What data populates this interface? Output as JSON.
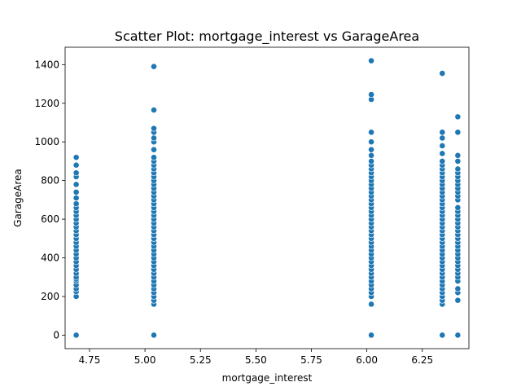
{
  "chart_data": {
    "type": "scatter",
    "title": "Scatter Plot: mortgage_interest vs GarageArea",
    "xlabel": "mortgage_interest",
    "ylabel": "GarageArea",
    "xlim": [
      4.64,
      6.46
    ],
    "ylim": [
      -70,
      1490
    ],
    "grid": false,
    "xticks": [
      4.75,
      5.0,
      5.25,
      5.5,
      5.75,
      6.0,
      6.25
    ],
    "xtick_labels": [
      "4.75",
      "5.00",
      "5.25",
      "5.50",
      "5.75",
      "6.00",
      "6.25"
    ],
    "yticks": [
      0,
      200,
      400,
      600,
      800,
      1000,
      1200,
      1400
    ],
    "ytick_labels": [
      "0",
      "200",
      "400",
      "600",
      "800",
      "1000",
      "1200",
      "1400"
    ],
    "marker_color": "#1f77b4",
    "series": [
      {
        "x": 4.69,
        "y": [
          0,
          200,
          225,
          240,
          260,
          280,
          290,
          300,
          320,
          340,
          360,
          380,
          400,
          420,
          440,
          460,
          480,
          500,
          520,
          540,
          560,
          580,
          600,
          620,
          640,
          660,
          680,
          710,
          740,
          780,
          820,
          840,
          880,
          920
        ]
      },
      {
        "x": 5.04,
        "y": [
          0,
          160,
          180,
          200,
          220,
          240,
          260,
          280,
          300,
          320,
          340,
          360,
          380,
          400,
          420,
          440,
          460,
          480,
          500,
          520,
          540,
          560,
          580,
          600,
          620,
          640,
          660,
          680,
          700,
          720,
          740,
          760,
          780,
          800,
          820,
          840,
          860,
          880,
          900,
          920,
          960,
          1000,
          1020,
          1050,
          1070,
          1165,
          1390
        ]
      },
      {
        "x": 6.02,
        "y": [
          0,
          160,
          200,
          220,
          240,
          260,
          280,
          300,
          320,
          340,
          360,
          380,
          400,
          420,
          440,
          460,
          480,
          500,
          520,
          540,
          560,
          580,
          600,
          620,
          640,
          660,
          680,
          700,
          720,
          740,
          760,
          780,
          800,
          820,
          840,
          860,
          880,
          900,
          930,
          960,
          1000,
          1050,
          1220,
          1245,
          1420
        ]
      },
      {
        "x": 6.34,
        "y": [
          0,
          160,
          180,
          200,
          220,
          240,
          260,
          280,
          300,
          320,
          340,
          360,
          380,
          400,
          420,
          440,
          460,
          480,
          500,
          520,
          540,
          560,
          580,
          600,
          620,
          640,
          660,
          680,
          700,
          720,
          740,
          760,
          780,
          800,
          820,
          840,
          860,
          880,
          900,
          940,
          980,
          1020,
          1050,
          1355
        ]
      },
      {
        "x": 6.41,
        "y": [
          0,
          180,
          220,
          240,
          280,
          300,
          320,
          340,
          360,
          380,
          400,
          420,
          440,
          460,
          480,
          500,
          520,
          540,
          560,
          580,
          600,
          620,
          640,
          660,
          700,
          720,
          740,
          760,
          780,
          800,
          820,
          840,
          860,
          900,
          930,
          1050,
          1130
        ]
      }
    ]
  }
}
